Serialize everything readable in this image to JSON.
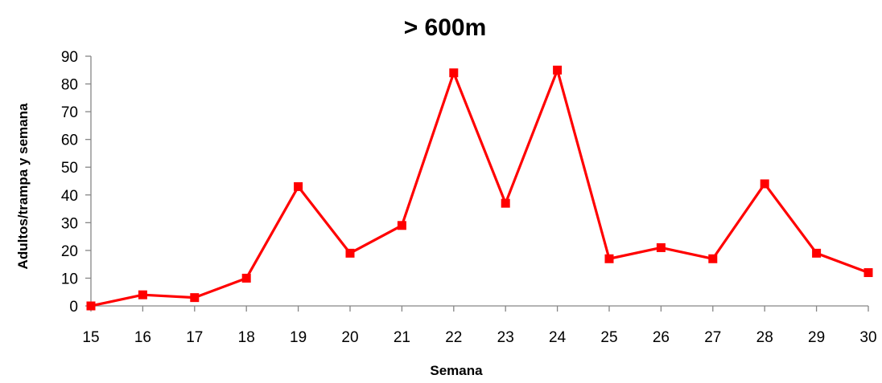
{
  "chart_data": {
    "type": "line",
    "title": "> 600m",
    "xlabel": "Semana",
    "ylabel": "Adultos/trampa y semana",
    "categories": [
      "15",
      "16",
      "17",
      "18",
      "19",
      "20",
      "21",
      "22",
      "23",
      "24",
      "25",
      "26",
      "27",
      "28",
      "29",
      "30"
    ],
    "yticks": [
      "0",
      "10",
      "20",
      "30",
      "40",
      "50",
      "60",
      "70",
      "80",
      "90"
    ],
    "ylim": [
      0,
      90
    ],
    "grid": false,
    "legend": "none",
    "series": [
      {
        "values": [
          0,
          4,
          3,
          10,
          43,
          19,
          29,
          84,
          37,
          85,
          17,
          21,
          17,
          44,
          19,
          12
        ],
        "color": "#ff0000",
        "marker": "square"
      }
    ]
  }
}
